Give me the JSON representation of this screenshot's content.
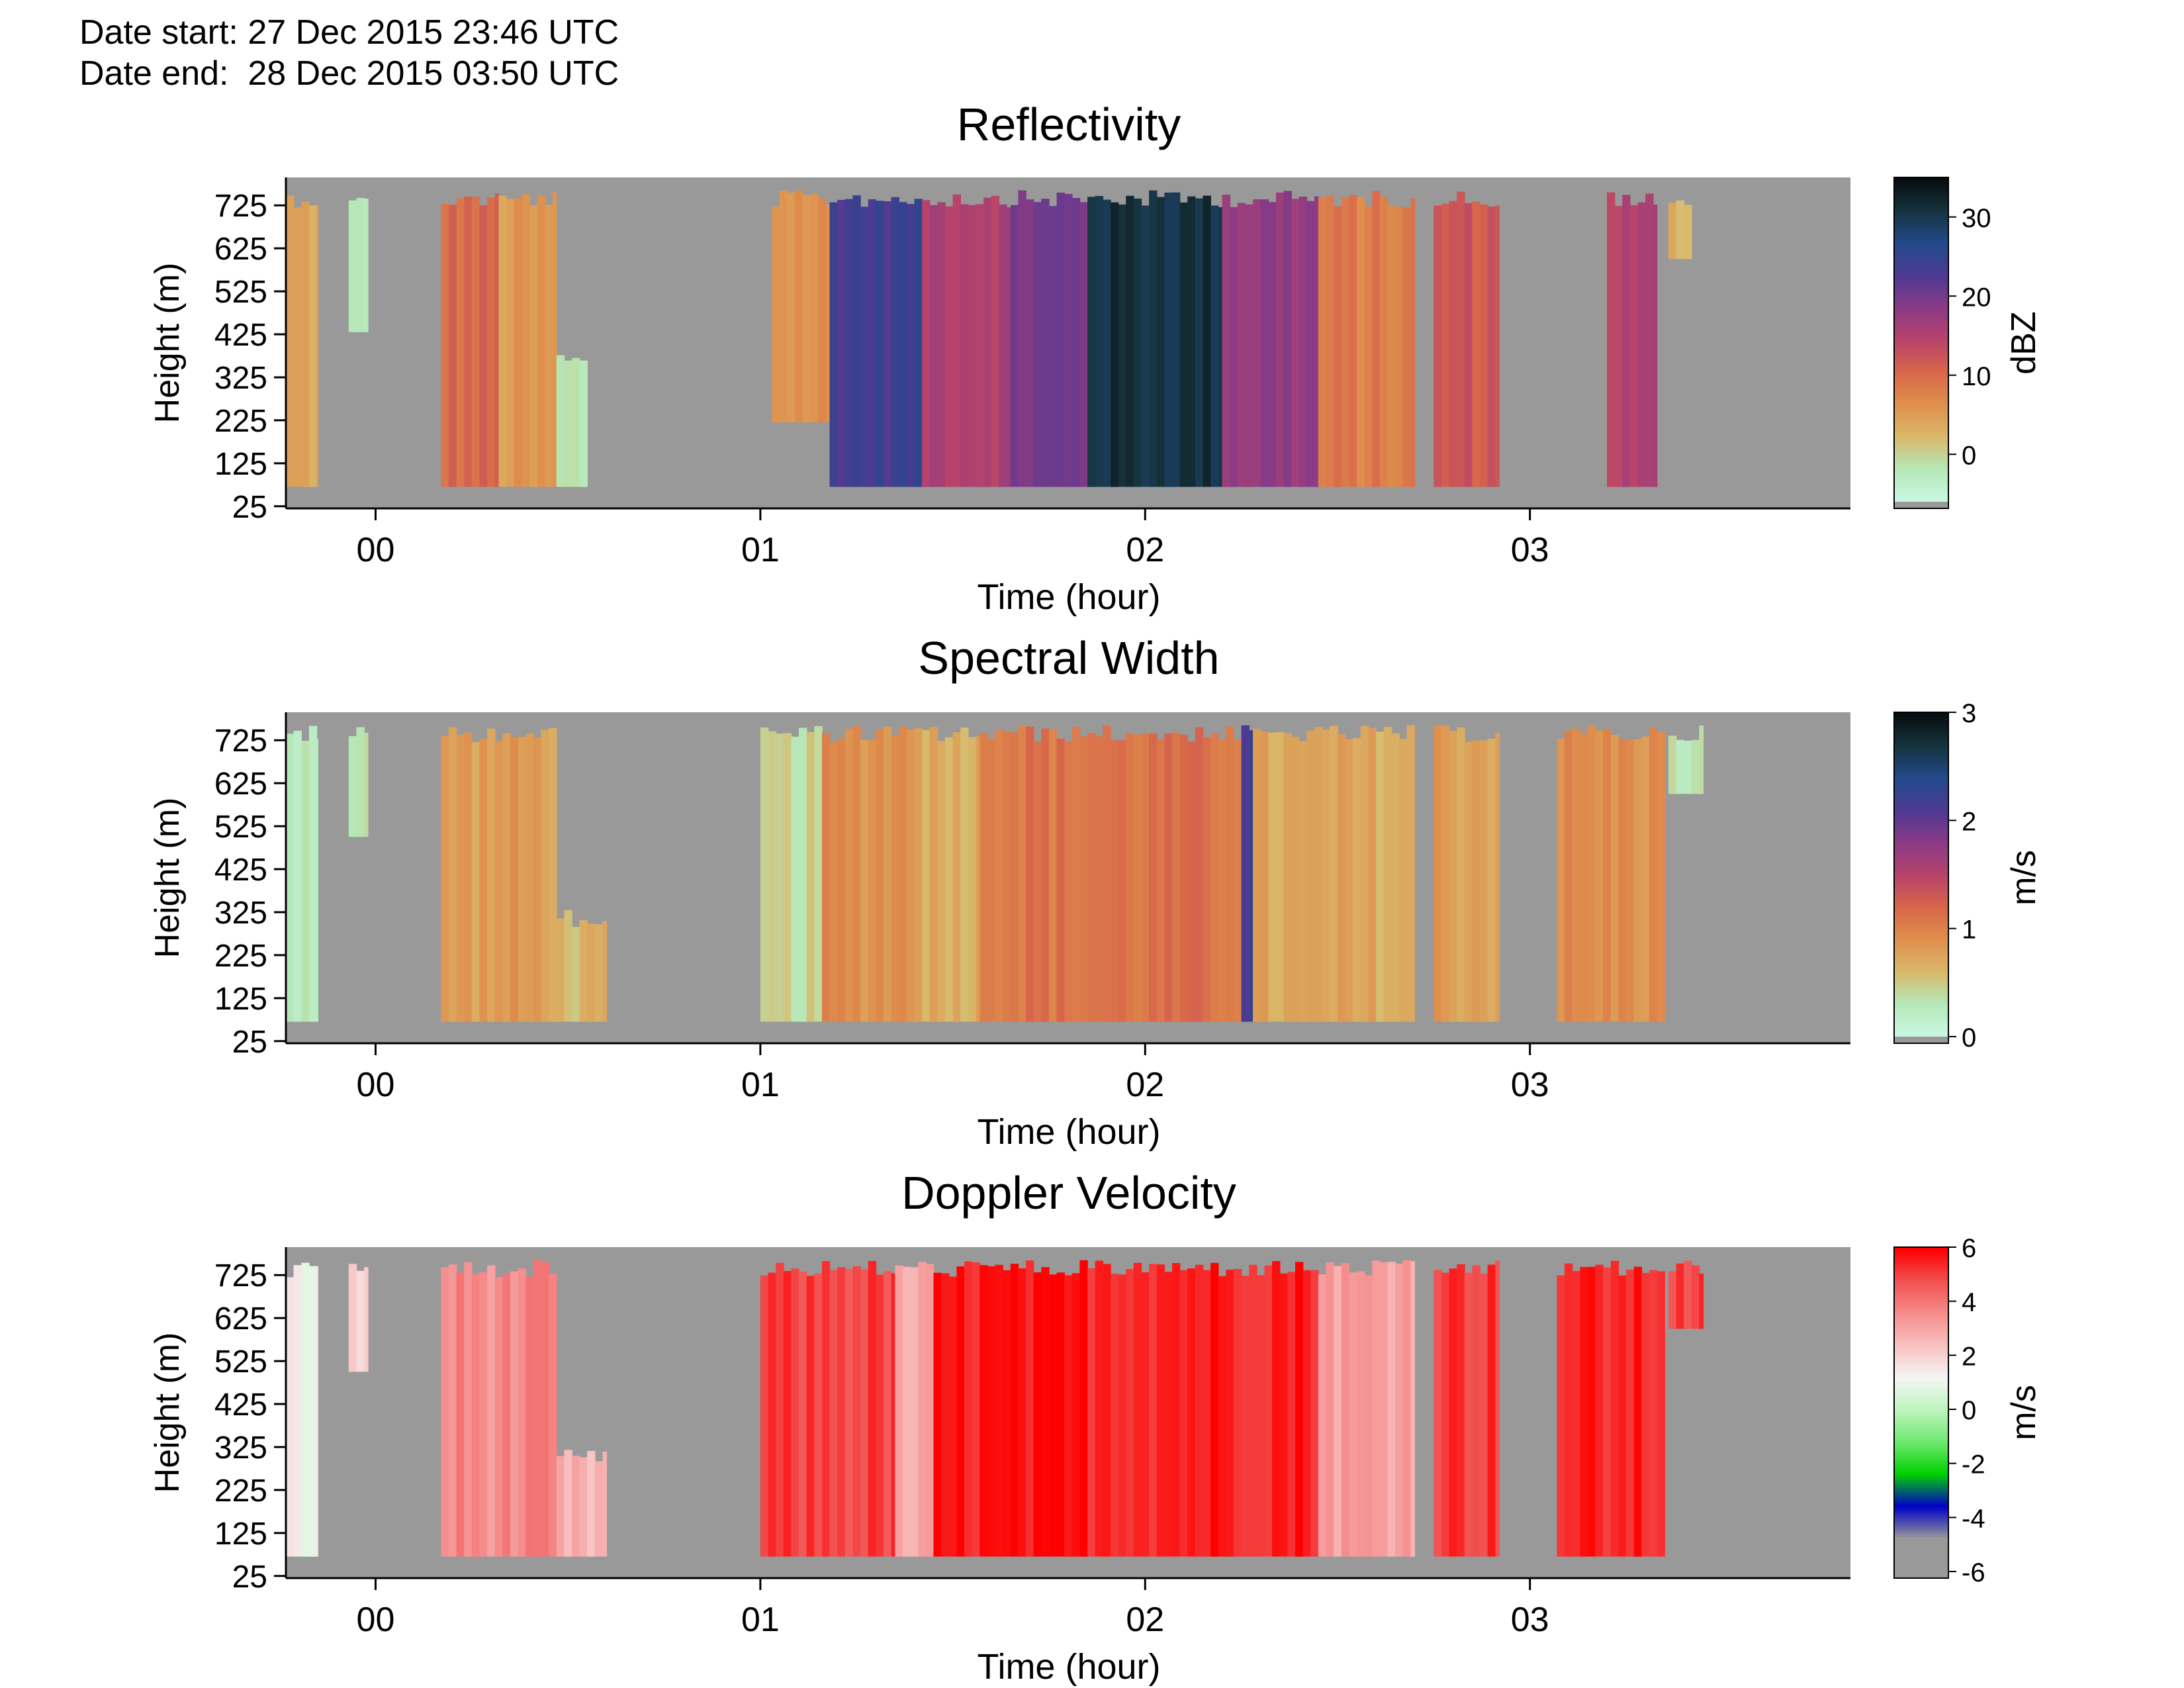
{
  "header": {
    "date_start": "Date start: 27 Dec 2015 23:46 UTC",
    "date_end": "Date end:  28 Dec 2015 03:50 UTC"
  },
  "chart_data": [
    {
      "type": "heatmap",
      "title": "Reflectivity",
      "xlabel": "Time (hour)",
      "ylabel": "Height (m)",
      "colorbar_label": "dBZ",
      "x_ticks": [
        "00",
        "01",
        "02",
        "03"
      ],
      "x_tick_values": [
        0,
        1,
        2,
        3
      ],
      "xlim": [
        -0.233,
        3.833
      ],
      "y_ticks": [
        "25",
        "125",
        "225",
        "325",
        "425",
        "525",
        "625",
        "725"
      ],
      "y_tick_values": [
        25,
        125,
        225,
        325,
        425,
        525,
        625,
        725
      ],
      "ylim": [
        20,
        790
      ],
      "colorbar_ticks": [
        "0",
        "10",
        "20",
        "30"
      ],
      "colorbar_tick_values": [
        0,
        10,
        20,
        30
      ],
      "colorbar_range": [
        -6,
        35
      ],
      "colormap": [
        "#c9f7e4",
        "#b6e7b6",
        "#d9b86a",
        "#df8f4c",
        "#d8664a",
        "#b8436a",
        "#8a3b86",
        "#4d3a92",
        "#234a8c",
        "#16343e",
        "#070d0f"
      ],
      "missing_color": "#999999",
      "echo_segments": [
        {
          "t": [
            -0.233,
            -0.15
          ],
          "top": 760,
          "bottom": 70,
          "value": 4
        },
        {
          "t": [
            -0.07,
            -0.02
          ],
          "top": 750,
          "bottom": 430,
          "value": -3
        },
        {
          "t": [
            0.17,
            0.32
          ],
          "top": 760,
          "bottom": 70,
          "value": 10
        },
        {
          "t": [
            0.32,
            0.47
          ],
          "top": 760,
          "bottom": 70,
          "value": 5
        },
        {
          "t": [
            0.47,
            0.55
          ],
          "top": 380,
          "bottom": 70,
          "value": -2
        },
        {
          "t": [
            1.03,
            1.18
          ],
          "top": 760,
          "bottom": 220,
          "value": 6
        },
        {
          "t": [
            1.18,
            1.42
          ],
          "top": 760,
          "bottom": 70,
          "value": 24
        },
        {
          "t": [
            1.42,
            1.65
          ],
          "top": 760,
          "bottom": 70,
          "value": 16
        },
        {
          "t": [
            1.65,
            1.85
          ],
          "top": 760,
          "bottom": 70,
          "value": 20
        },
        {
          "t": [
            1.85,
            2.2
          ],
          "top": 760,
          "bottom": 70,
          "value": 31
        },
        {
          "t": [
            2.2,
            2.45
          ],
          "top": 760,
          "bottom": 70,
          "value": 18
        },
        {
          "t": [
            2.45,
            2.7
          ],
          "top": 760,
          "bottom": 70,
          "value": 8
        },
        {
          "t": [
            2.75,
            2.92
          ],
          "top": 760,
          "bottom": 70,
          "value": 12
        },
        {
          "t": [
            3.2,
            3.33
          ],
          "top": 760,
          "bottom": 70,
          "value": 15
        },
        {
          "t": [
            3.36,
            3.42
          ],
          "top": 740,
          "bottom": 600,
          "value": 3
        }
      ]
    },
    {
      "type": "heatmap",
      "title": "Spectral Width",
      "xlabel": "Time (hour)",
      "ylabel": "Height (m)",
      "colorbar_label": "m/s",
      "x_ticks": [
        "00",
        "01",
        "02",
        "03"
      ],
      "x_tick_values": [
        0,
        1,
        2,
        3
      ],
      "xlim": [
        -0.233,
        3.833
      ],
      "y_ticks": [
        "25",
        "125",
        "225",
        "325",
        "425",
        "525",
        "625",
        "725"
      ],
      "y_tick_values": [
        25,
        125,
        225,
        325,
        425,
        525,
        625,
        725
      ],
      "ylim": [
        20,
        790
      ],
      "colorbar_ticks": [
        "0",
        "1",
        "2",
        "3"
      ],
      "colorbar_tick_values": [
        0,
        1,
        2,
        3
      ],
      "colorbar_range": [
        0,
        3
      ],
      "colormap": [
        "#c9f7e4",
        "#b6e7b6",
        "#d9b86a",
        "#df8f4c",
        "#d8664a",
        "#b8436a",
        "#8a3b86",
        "#4d3a92",
        "#234a8c",
        "#16343e",
        "#070d0f"
      ],
      "missing_color": "#999999",
      "echo_segments": [
        {
          "t": [
            -0.233,
            -0.15
          ],
          "top": 760,
          "bottom": 70,
          "value": 0.3
        },
        {
          "t": [
            -0.07,
            -0.02
          ],
          "top": 760,
          "bottom": 500,
          "value": 0.3
        },
        {
          "t": [
            0.17,
            0.47
          ],
          "top": 760,
          "bottom": 70,
          "value": 0.8
        },
        {
          "t": [
            0.47,
            0.6
          ],
          "top": 330,
          "bottom": 70,
          "value": 0.6
        },
        {
          "t": [
            1.0,
            1.16
          ],
          "top": 760,
          "bottom": 70,
          "value": 0.4
        },
        {
          "t": [
            1.16,
            1.42
          ],
          "top": 760,
          "bottom": 70,
          "value": 0.9
        },
        {
          "t": [
            1.42,
            1.57
          ],
          "top": 760,
          "bottom": 70,
          "value": 0.7
        },
        {
          "t": [
            1.57,
            2.25
          ],
          "top": 760,
          "bottom": 70,
          "value": 1.1
        },
        {
          "t": [
            2.25,
            2.28
          ],
          "top": 760,
          "bottom": 70,
          "value": 2.2
        },
        {
          "t": [
            2.28,
            2.7
          ],
          "top": 760,
          "bottom": 70,
          "value": 0.7
        },
        {
          "t": [
            2.75,
            2.92
          ],
          "top": 760,
          "bottom": 70,
          "value": 0.8
        },
        {
          "t": [
            3.07,
            3.35
          ],
          "top": 760,
          "bottom": 70,
          "value": 0.9
        },
        {
          "t": [
            3.36,
            3.45
          ],
          "top": 760,
          "bottom": 600,
          "value": 0.3
        }
      ]
    },
    {
      "type": "heatmap",
      "title": "Doppler Velocity",
      "xlabel": "Time (hour)",
      "ylabel": "Height (m)",
      "colorbar_label": "m/s",
      "x_ticks": [
        "00",
        "01",
        "02",
        "03"
      ],
      "x_tick_values": [
        0,
        1,
        2,
        3
      ],
      "xlim": [
        -0.233,
        3.833
      ],
      "y_ticks": [
        "25",
        "125",
        "225",
        "325",
        "425",
        "525",
        "625",
        "725"
      ],
      "y_tick_values": [
        25,
        125,
        225,
        325,
        425,
        525,
        625,
        725
      ],
      "ylim": [
        20,
        790
      ],
      "colorbar_ticks": [
        "-6",
        "-4",
        "-2",
        "0",
        "2",
        "4",
        "6"
      ],
      "colorbar_tick_values": [
        -6,
        -4,
        -2,
        0,
        2,
        4,
        6
      ],
      "colorbar_range": [
        -6,
        6
      ],
      "colormap": [
        "#999999",
        "#999999",
        "#0000c8",
        "#00d000",
        "#6ee86e",
        "#bdf5bd",
        "#f5f5f5",
        "#f8c0c0",
        "#f58c8c",
        "#f25050",
        "#ff0000"
      ],
      "missing_color": "#999999",
      "echo_segments": [
        {
          "t": [
            -0.233,
            -0.15
          ],
          "top": 760,
          "bottom": 70,
          "value": 1.2
        },
        {
          "t": [
            -0.07,
            -0.02
          ],
          "top": 760,
          "bottom": 500,
          "value": 2.0
        },
        {
          "t": [
            0.17,
            0.47
          ],
          "top": 760,
          "bottom": 70,
          "value": 3.6
        },
        {
          "t": [
            0.47,
            0.6
          ],
          "top": 330,
          "bottom": 70,
          "value": 2.6
        },
        {
          "t": [
            1.0,
            1.35
          ],
          "top": 760,
          "bottom": 70,
          "value": 5.0
        },
        {
          "t": [
            1.35,
            1.45
          ],
          "top": 760,
          "bottom": 70,
          "value": 2.8
        },
        {
          "t": [
            1.45,
            2.45
          ],
          "top": 760,
          "bottom": 70,
          "value": 5.6
        },
        {
          "t": [
            2.45,
            2.7
          ],
          "top": 760,
          "bottom": 70,
          "value": 3.2
        },
        {
          "t": [
            2.75,
            2.92
          ],
          "top": 760,
          "bottom": 70,
          "value": 5.2
        },
        {
          "t": [
            3.07,
            3.35
          ],
          "top": 760,
          "bottom": 70,
          "value": 5.4
        },
        {
          "t": [
            3.36,
            3.45
          ],
          "top": 760,
          "bottom": 600,
          "value": 5.0
        }
      ]
    }
  ]
}
